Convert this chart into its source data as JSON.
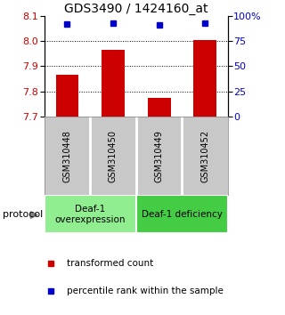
{
  "title": "GDS3490 / 1424160_at",
  "samples": [
    "GSM310448",
    "GSM310450",
    "GSM310449",
    "GSM310452"
  ],
  "bar_values": [
    7.865,
    7.965,
    7.775,
    8.005
  ],
  "percentile_values": [
    92,
    93,
    91,
    93
  ],
  "ylim_left": [
    7.7,
    8.1
  ],
  "ylim_right": [
    0,
    100
  ],
  "yticks_left": [
    7.7,
    7.8,
    7.9,
    8.0,
    8.1
  ],
  "yticks_right": [
    0,
    25,
    50,
    75,
    100
  ],
  "ytick_labels_right": [
    "0",
    "25",
    "50",
    "75",
    "100%"
  ],
  "bar_color": "#cc0000",
  "dot_color": "#0000cc",
  "background_color": "#ffffff",
  "group1_label": "Deaf-1\noverexpression",
  "group2_label": "Deaf-1 deficiency",
  "group1_color": "#90ee90",
  "group2_color": "#44cc44",
  "sample_box_color": "#c8c8c8",
  "protocol_label": "protocol",
  "legend_bar_label": "transformed count",
  "legend_dot_label": "percentile rank within the sample",
  "title_fontsize": 10,
  "tick_fontsize": 8,
  "sample_fontsize": 7,
  "group_fontsize": 7.5,
  "legend_fontsize": 7.5,
  "protocol_fontsize": 8
}
